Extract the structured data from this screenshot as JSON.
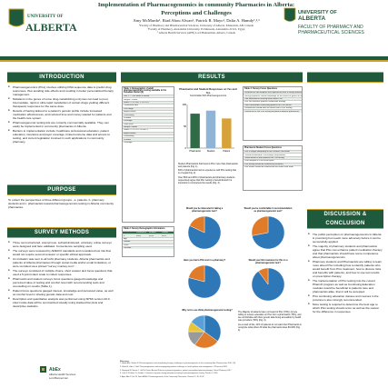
{
  "header": {
    "title_line1": "Implementation of Pharmacogenomics in community Pharmacies in Alberta:",
    "title_line2": "Perceptions and Challenges",
    "authors": "Amy McMardo¹, Riad Abou Alwan¹, Patrick R. Mayo¹, Dalia A. Hamdy¹,²,³",
    "affil_1": "¹Faculty of Pharmacy and Pharmaceutical Sciences, University of Alberta, Edmonton, AB, Canada",
    "affil_2": "²Faculty of Pharmacy, Alexandria University, El-Messeda, Alexandria 21521, Egypt",
    "affil_3": "³ Alberta Health Services (AHS) Lord Bannerman, Alberta, Canada",
    "left_logo_text": "UNIVERSITY OF ALBERTA",
    "right_logo_line1": "UNIVERSITY OF ALBERTA",
    "right_logo_line2": "FACULTY OF PHARMACY AND",
    "right_logo_line3": "PHARMACEUTICAL SCIENCES"
  },
  "sections": {
    "introduction": {
      "heading": "INTRODUCTION",
      "bullets": [
        "Pharmacogenomics (PGx) involves utilizing DNA sequence data to predict drug responses, thus avoiding side effects and resulting in better personalized therapy management.",
        "Mutations in the genes of some drug-metabolizing enzymes can lead to poor, intermediate, rapid or ultra-rapid metabolism of certain drugs yielding different therapeutic responses for the same dose.",
        "Results of having tailored to a patient's genetic profile include increased medication effectiveness, and reduced time and money wasted for patients and the health care system.",
        "Pharmacogenomic testing kits are currently commercially available. They can easily be implemented in community pharmacies in Alberta.",
        "Barriers to implementation include: healthcare professional education, patient education, insurance and payer coverage, limited outcome data and access to testing, and current legislation involved in such applications in community pharmacy."
      ]
    },
    "purpose": {
      "heading": "PURPOSE",
      "text": "To collect the perspectives of three different groups - a. patients, b. pharmacy students and c. pharmacists toward pharmacogenomics testing in Alberta community pharmacies."
    },
    "methods": {
      "heading": "SURVEY METHODS",
      "bullets": [
        "Three semi-structured, anonymous, self-administered, voluntary, online surveys were designed and face validated. Convenience sampling used.",
        "The surveys were reviewed by ARECCI standards and considered low risk that would not require second reviewer or specific ethical approvals.",
        "An invitation was sent to all UofA pharmacy students, Alberta pharmacists and patients of Alberta pharmacies through social media and/or email invitations, or were recruited via a printed \"survey monkey.com\".",
        "The surveys consisted of multiple choice, short answer and focus questions that used a 5-point Likert scale to collect responses.",
        "Pharmacist and student surveys focus questions gauged knowledge and perceived value of testing and comfort level with recommending tests and counselling on results (Table 1).",
        "Patient focus questions gauged interest, knowledge and perceived value, as well as comfort level in sharing genetic data and cost.",
        "Descriptive and quantitative analysis was performed using SPSS version 20.0. Likert scale data will be summarized visually using stacked bar plots and descriptive statistics."
      ]
    },
    "results": {
      "heading": "RESULTS"
    },
    "discussion": {
      "heading": "DISCUSSION & CONCLUSION",
      "bullets": [
        "The public perception on pharmacogenomics in Alberta is promising but needs more advocacy before it can be successfully applied.",
        "The majority of pharmacy students and pharmacists agree that PGx can enhance patient medication therapy and that pharmacists should have some competence about pharmacogenomics.",
        "Pharmacy students and Pharmacists are willing to learn more about PGx including how to identify patients who would benefit from PGx treatment, how to discuss risks and benefits with patients, and how to use test results on prescription therapy.",
        "The implementation of PGx testing into the current PharmD program as well as Continuing Education modules would be beneficial to patients care and pharmacists alike, than it will be accepted.",
        "PGx continuing education classes and courses in the province is also strongly recommended.",
        "More testing is required to determine the best age to which PGx testing should occur as well as the reason for the difference in responses."
      ]
    }
  },
  "results": {
    "table1": {
      "title": "Table 1: Demographic of adult pharmacogenomics testing available in the Canadian market [2]",
      "rows": [
        "Test 1 — Test name & format",
        "Sample / Saliva",
        "Genes / CYP2D6, CYP2C19",
        "Turnaround time",
        "Cost range",
        "Report format",
        "Counselling",
        "Provider",
        "Coverage",
        "Other tests",
        "Sample / Blood",
        "Genes / CYP2C9, VKORC1",
        "Report format",
        "Counselling",
        "Provider",
        "Coverage"
      ]
    },
    "table2": {
      "title": "Table 2: Survey Demographic Information",
      "cols": [
        "",
        "Pharmacist",
        "Student",
        "Patient"
      ],
      "rows": [
        [
          "n",
          "n=83",
          "n=35",
          "n=25"
        ],
        [
          "Age",
          "",
          "",
          ""
        ],
        [
          "Gender",
          "",
          "",
          ""
        ],
        [
          "Years",
          "",
          "",
          ""
        ],
        [
          "Location",
          "",
          "",
          ""
        ]
      ]
    },
    "table3": {
      "title": "Table 3: Survey Focus Questions",
      "rows": [
        "Pharmacists and students are expected to have a strong understanding of PGx",
        "Survey responses reveal knowledge on the effects of genes on drug response",
        "I am interested in learning more about PGx",
        "PGx can enhance patients' medication therapy",
        "I feel comfortable counselling patients on PGx results",
        "Pharmacists should have an active role in PGx testing",
        "I would like to see PGx testing available in Alberta pharmacies"
      ]
    },
    "table4": {
      "title": "Pharmacist Student Focus Questions",
      "rows": [
        "PGx is taught adequately in the PharmD curriculum",
        "I would recommend PGx testing to my patients",
        "I know where to refer patients for PGx testing",
        "I can interpret a PGx result report",
        "PGx testing should be covered by insurance",
        "PGx results should be shared with the health care team"
      ]
    },
    "bar_chart": {
      "title": "Pharmacist and Student Responses on Yes and Yes",
      "subtitle": "Comfortable With Pharmacogenomics",
      "legend_note": "n the ... n ve the",
      "notes": [
        "Student Pharmacists that found a PGx more than pharmacists and patients (Fig. 1).",
        "84% of pharmacists had no experience with PGx testing that is of equal (Fig. 2).",
        "Over 80% and 90% of pharmacists and pharmacy students respectively agree that PGx testing is beneficial and it is important to comprehend its results (Fig. 3)."
      ]
    },
    "pies": [
      {
        "title": "Would you be interested in taking a pharmacogenomic test?"
      },
      {
        "title": "Would you be comfortable in recommendation as pharmacogenomic test?"
      },
      {
        "title": "Have you had a PGx test in a pharmacy?"
      },
      {
        "title": "Would your life insurance for this to a pharmacogenomic test?"
      },
      {
        "title": "Why not to use think pharmacogenomic testing?"
      }
    ],
    "pie_notes": [
      "The Majority of patients have not heard of PGx (79%), but are willing to receive education on PGx from a pharmacist (75%), and are comfortable with their genetic data being accessible by health care providers (72%) (Fig. 4).",
      "As a result of this, 44% of patients do not want their Pharmacist to recognize what others fill what the pharmacist does 80-93% (Fig. 4)."
    ],
    "references_heading": "References",
    "references": [
      "1. Bdeeb AN, Chokeir M. Pharmacogenetics and complicating therapy: challenges in pharmacogenetics in the community. Ann Pharmacother 2016; 1(1).",
      "2. Hinks M, Oden Y, Goff. Pharmacogenomics and managing poly patients challenges in health patients and management. J Pharmacol 2011.",
      "3. Raymond M, Santos C. Gal Ka Patient Bennett Patients to pharmacogenomics, patient: personalized pharmacotherapy, Clinical Pharmacy 2017.",
      "4. Cash P, Ki Hwan Tx, Gordon Y. Genetics of genetic testing and patients testing for pharmacogenomic testing. Practice J. 2016.",
      "5. Ayee. Abu S. Fal JS, Dzina ANWs. Pharmacogenomics & the Community Pharmacist. Chemie 12, 19: 26-47."
    ]
  },
  "footer": {
    "logo_line1": "AbEx",
    "logo_line2": "Alberta Health Services",
    "logo_line3": "Lord Bannerman"
  },
  "chart_data": [
    {
      "type": "bar",
      "title": "Pharmacist and Student Responses on Yes and Yes",
      "subtitle": "Comfortable With Pharmacogenomics",
      "categories": [
        "Pharmacist",
        "Student",
        "Patient"
      ],
      "values": [
        79,
        86,
        68
      ],
      "ylim": [
        0,
        100
      ],
      "colors": [
        "#2e6b46",
        "#8fb4d6",
        "#d8a23a"
      ]
    },
    {
      "type": "pie",
      "title": "Would you be interested in taking a pharmacogenomic test?",
      "values": [
        82,
        18
      ],
      "colors": [
        "#2f78b7",
        "#e07b2a"
      ]
    },
    {
      "type": "pie",
      "title": "Would you be comfortable in recommendation as pharmacogenomic test?",
      "values": [
        72,
        28
      ],
      "colors": [
        "#2f78b7",
        "#e07b2a"
      ]
    },
    {
      "type": "pie",
      "title": "Have you had a PGx test in a pharmacy?",
      "values": [
        79,
        21
      ],
      "colors": [
        "#2f78b7",
        "#e07b2a"
      ]
    },
    {
      "type": "pie",
      "title": "Would your life insurance for this to a pharmacogenomic test?",
      "values": [
        90,
        10
      ],
      "colors": [
        "#2f78b7",
        "#e07b2a"
      ]
    },
    {
      "type": "pie",
      "title": "Why not to use think pharmacogenomic testing?",
      "values": [
        35,
        25,
        15,
        10,
        15
      ],
      "colors": [
        "#2f78b7",
        "#e07b2a",
        "#9a9a9a",
        "#e8c43a",
        "#5aa0d8"
      ]
    }
  ]
}
